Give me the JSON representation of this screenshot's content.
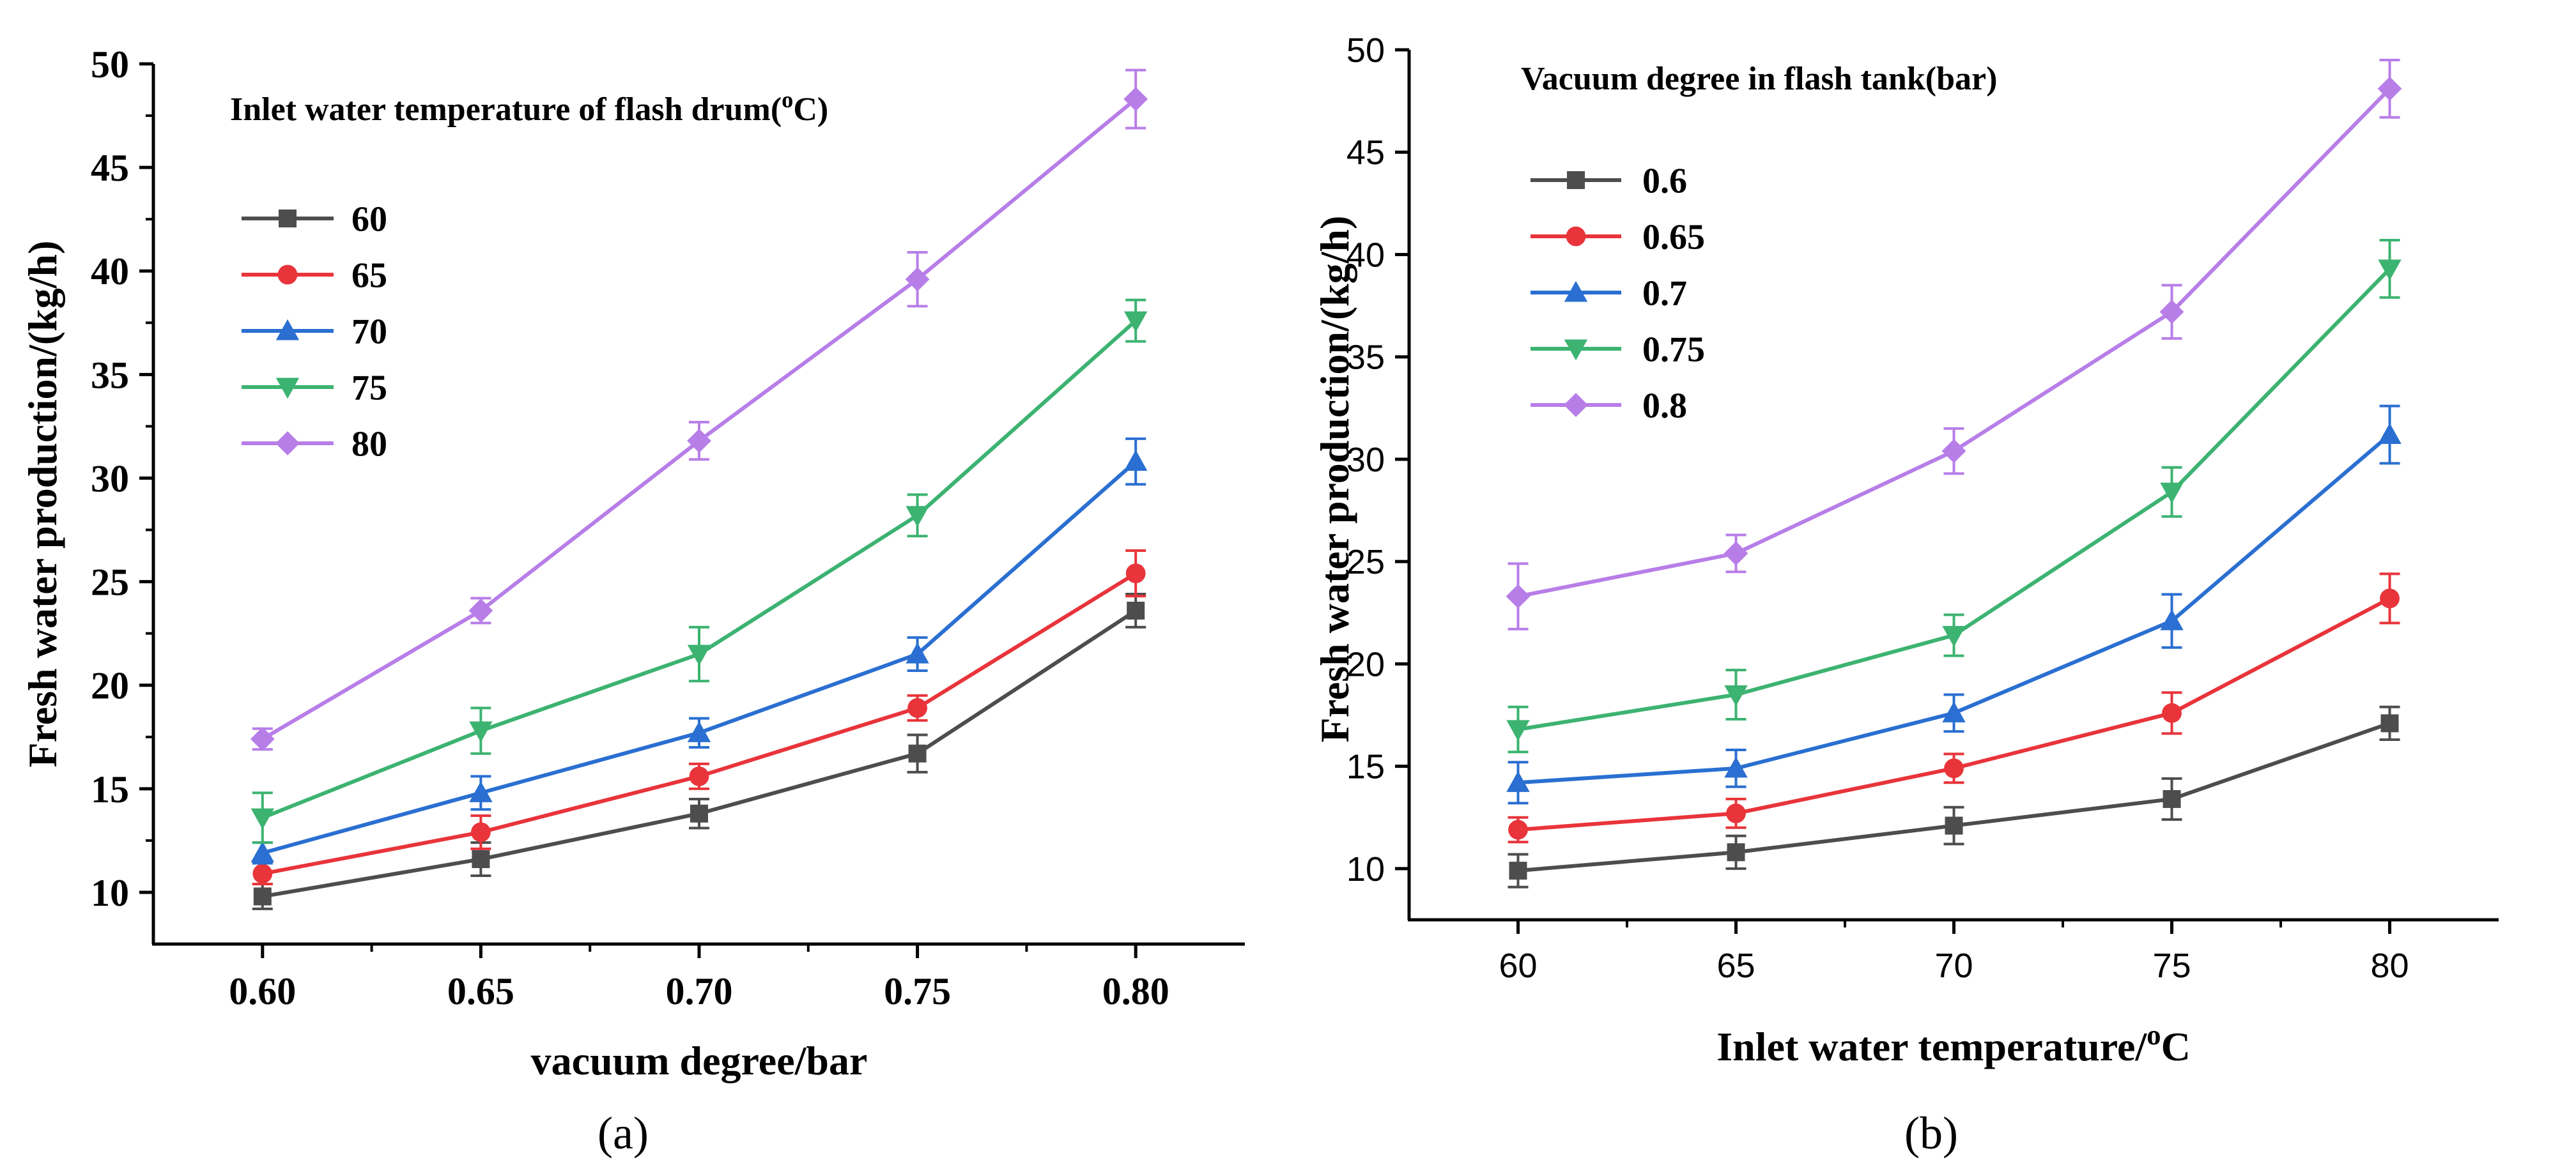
{
  "chart_data": [
    {
      "type": "line",
      "panel_label": "(a)",
      "xlabel": "vacuum degree/bar",
      "ylabel": "Fresh water production/(kg/h)",
      "x": [
        0.6,
        0.65,
        0.7,
        0.75,
        0.8
      ],
      "x_tick_labels": [
        "0.60",
        "0.65",
        "0.70",
        "0.75",
        "0.80"
      ],
      "xlim": [
        0.575,
        0.825
      ],
      "ylim": [
        7.5,
        50
      ],
      "y_ticks": [
        10,
        15,
        20,
        25,
        30,
        35,
        40,
        45,
        50
      ],
      "y_tick_labels": [
        "10",
        "15",
        "20",
        "25",
        "30",
        "35",
        "40",
        "45",
        "50"
      ],
      "y_tick_bold": true,
      "legend_title_parts": [
        "Inlet water temperature of flash drum(",
        "o",
        "C)"
      ],
      "legend_position": "top-left",
      "series": [
        {
          "name": "60",
          "color": "#4d4d4d",
          "marker": "square",
          "values": [
            9.8,
            11.6,
            13.8,
            16.7,
            23.6
          ],
          "errors": [
            0.6,
            0.8,
            0.7,
            0.9,
            0.8
          ]
        },
        {
          "name": "65",
          "color": "#e8343a",
          "marker": "circle",
          "values": [
            10.9,
            12.9,
            15.6,
            18.9,
            25.4
          ],
          "errors": [
            0.5,
            0.8,
            0.6,
            0.6,
            1.1
          ]
        },
        {
          "name": "70",
          "color": "#2a6fd1",
          "marker": "triangle-up",
          "values": [
            11.9,
            14.8,
            17.7,
            21.5,
            30.8
          ],
          "errors": [
            0.5,
            0.8,
            0.7,
            0.8,
            1.1
          ]
        },
        {
          "name": "75",
          "color": "#3cb371",
          "marker": "triangle-down",
          "values": [
            13.6,
            17.8,
            21.5,
            28.2,
            37.6
          ],
          "errors": [
            1.2,
            1.1,
            1.3,
            1.0,
            1.0
          ]
        },
        {
          "name": "80",
          "color": "#b77ee8",
          "marker": "diamond",
          "values": [
            17.4,
            23.6,
            31.8,
            39.6,
            48.3
          ],
          "errors": [
            0.5,
            0.6,
            0.9,
            1.3,
            1.4
          ]
        }
      ]
    },
    {
      "type": "line",
      "panel_label": "(b)",
      "xlabel_parts": [
        "Inlet water temperature/",
        "o",
        "C"
      ],
      "ylabel": "Fresh water production/(kg/h)",
      "x": [
        60,
        65,
        70,
        75,
        80
      ],
      "x_tick_labels": [
        "60",
        "65",
        "70",
        "75",
        "80"
      ],
      "xlim": [
        57.5,
        82.5
      ],
      "ylim": [
        7.5,
        50
      ],
      "y_ticks": [
        10,
        15,
        20,
        25,
        30,
        35,
        40,
        45,
        50
      ],
      "y_tick_labels": [
        "10",
        "15",
        "20",
        "25",
        "30",
        "35",
        "40",
        "45",
        "50"
      ],
      "y_tick_bold": false,
      "legend_title": "Vacuum degree in flash tank(bar)",
      "legend_position": "top-left",
      "series": [
        {
          "name": "0.6",
          "color": "#4d4d4d",
          "marker": "square",
          "values": [
            9.9,
            10.8,
            12.1,
            13.4,
            17.1
          ],
          "errors": [
            0.8,
            0.8,
            0.9,
            1.0,
            0.8
          ]
        },
        {
          "name": "0.65",
          "color": "#e8343a",
          "marker": "circle",
          "values": [
            11.9,
            12.7,
            14.9,
            17.6,
            23.2
          ],
          "errors": [
            0.6,
            0.7,
            0.7,
            1.0,
            1.2
          ]
        },
        {
          "name": "0.7",
          "color": "#2a6fd1",
          "marker": "triangle-up",
          "values": [
            14.2,
            14.9,
            17.6,
            22.1,
            31.2
          ],
          "errors": [
            1.0,
            0.9,
            0.9,
            1.3,
            1.4
          ]
        },
        {
          "name": "0.75",
          "color": "#3cb371",
          "marker": "triangle-down",
          "values": [
            16.8,
            18.5,
            21.4,
            28.4,
            39.3
          ],
          "errors": [
            1.1,
            1.2,
            1.0,
            1.2,
            1.4
          ]
        },
        {
          "name": "0.8",
          "color": "#b77ee8",
          "marker": "diamond",
          "values": [
            23.3,
            25.4,
            30.4,
            37.2,
            48.1
          ],
          "errors": [
            1.6,
            0.9,
            1.1,
            1.3,
            1.4
          ]
        }
      ]
    }
  ]
}
